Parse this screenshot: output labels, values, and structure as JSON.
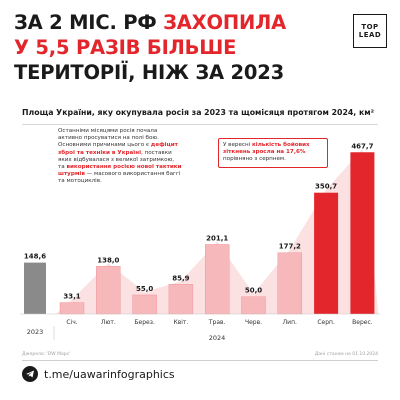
{
  "headline": {
    "line1_black": "ЗА 2 МІС. РФ ",
    "line1_red": "ЗАХОПИЛА",
    "line2_red": "У 5,5 РАЗІВ БІЛЬШЕ",
    "line3_black": "ТЕРИТОРІЇ, НІЖ ЗА 2023"
  },
  "logo": {
    "top": "TOP",
    "bottom": "LEAD"
  },
  "body_text": {
    "p1": "Останніми місяцями росія почала активно просуватися на полі бою. Основними причинами цього є ",
    "p1_red": "дефіцит зброї та техніки в Україні",
    "p2": ", поставки яких відбувалася з великої затримкою, та ",
    "p2_red": "використання росією нової тактики штурмів",
    "p3": " — масового використання баггі та мотоциклів."
  },
  "callout": {
    "pre": "У вересні ",
    "red": "кількість бойових зіткнень зросла на 17,6%",
    "post": " порівняно з серпнем."
  },
  "footer": {
    "source": "Джерело: 'DW Maps'",
    "date": "Дані станом на 01.10.2024",
    "telegram": "t.me/uawarinfographics"
  },
  "colors": {
    "accent_red": "#e3262b",
    "light_red": "#f6b8bb",
    "gray": "#8a8a8a"
  },
  "chart_data": {
    "type": "bar",
    "title": "Площа України, яку окупувала росія за 2023 та щомісяця протягом 2024, км²",
    "year_2023": {
      "label": "2023",
      "value": 148.6,
      "value_label": "148,6"
    },
    "year_2024_label": "2024",
    "categories": [
      "Січ.",
      "Лют.",
      "Берез.",
      "Квіт.",
      "Трав.",
      "Черв.",
      "Лип.",
      "Серп.",
      "Верес."
    ],
    "values": [
      33.1,
      138.0,
      55.0,
      85.9,
      201.1,
      50.0,
      177.2,
      350.7,
      467.7
    ],
    "value_labels": [
      "33,1",
      "138,0",
      "55,0",
      "85,9",
      "201,1",
      "50,0",
      "177,2",
      "350,7",
      "467,7"
    ],
    "highlight": [
      "Серп.",
      "Верес."
    ],
    "ylim": [
      0,
      480
    ]
  }
}
